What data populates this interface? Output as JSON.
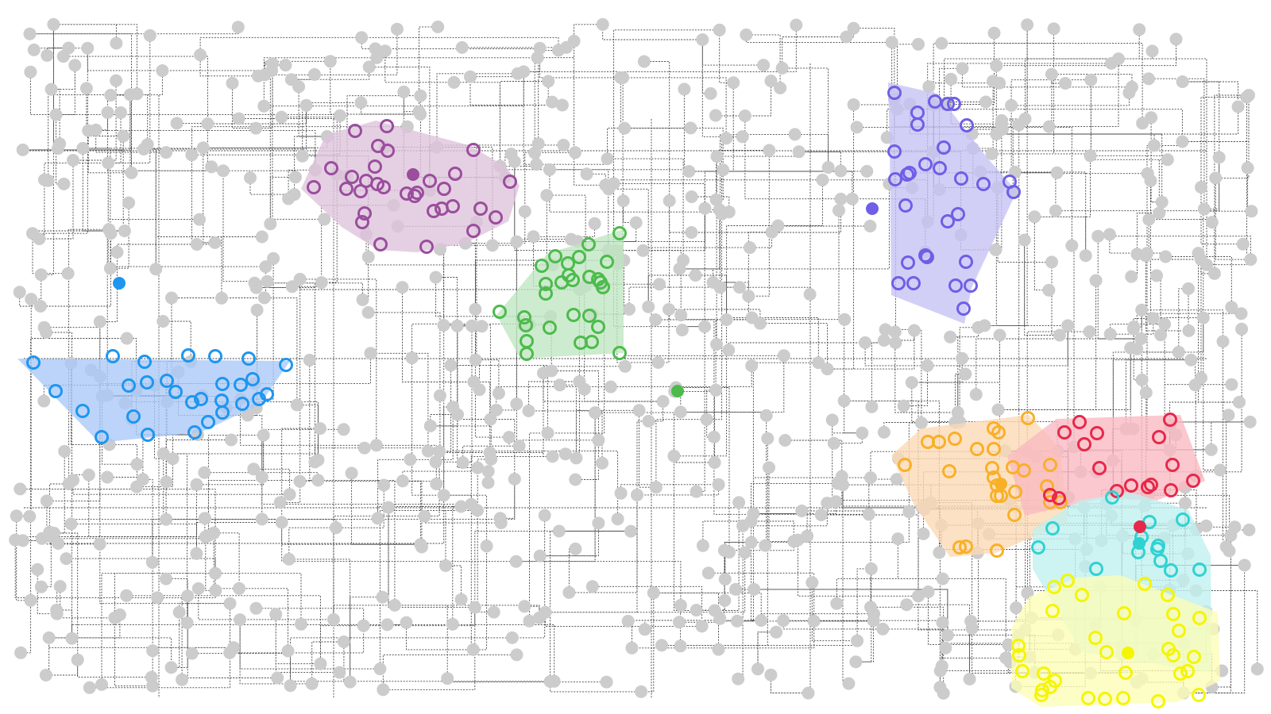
{
  "canvas": {
    "background": "#ffffff"
  },
  "style": {
    "node_color": "#cccccc",
    "edge_color": "#444444"
  },
  "clusters": [
    {
      "name": "blue",
      "color": "#1e96f0",
      "hull_color": "#a9c8f8",
      "center": [
        150,
        357
      ],
      "hull": [
        [
          22,
          452
        ],
        [
          365,
          455
        ],
        [
          327,
          510
        ],
        [
          252,
          545
        ],
        [
          125,
          558
        ]
      ],
      "members": [
        [
          42,
          457
        ],
        [
          142,
          449
        ],
        [
          182,
          456
        ],
        [
          237,
          448
        ],
        [
          271,
          449
        ],
        [
          313,
          452
        ],
        [
          360,
          460
        ],
        [
          70,
          493
        ],
        [
          104,
          518
        ],
        [
          162,
          486
        ],
        [
          185,
          482
        ],
        [
          210,
          480
        ],
        [
          221,
          494
        ],
        [
          242,
          507
        ],
        [
          253,
          503
        ],
        [
          280,
          484
        ],
        [
          303,
          485
        ],
        [
          318,
          478
        ],
        [
          326,
          503
        ],
        [
          336,
          497
        ],
        [
          279,
          505
        ],
        [
          305,
          509
        ],
        [
          280,
          520
        ],
        [
          168,
          525
        ],
        [
          186,
          548
        ],
        [
          128,
          551
        ],
        [
          245,
          545
        ],
        [
          262,
          532
        ]
      ]
    },
    {
      "name": "purple",
      "color": "#9b4d9e",
      "hull_color": "#dcc3da",
      "center": [
        520,
        220
      ],
      "hull": [
        [
          379,
          238
        ],
        [
          410,
          170
        ],
        [
          473,
          152
        ],
        [
          590,
          183
        ],
        [
          637,
          210
        ],
        [
          654,
          234
        ],
        [
          640,
          279
        ],
        [
          587,
          306
        ],
        [
          525,
          318
        ],
        [
          476,
          315
        ],
        [
          430,
          286
        ]
      ],
      "members": [
        [
          487,
          159
        ],
        [
          447,
          165
        ],
        [
          476,
          184
        ],
        [
          488,
          190
        ],
        [
          596,
          189
        ],
        [
          417,
          212
        ],
        [
          443,
          223
        ],
        [
          461,
          228
        ],
        [
          475,
          232
        ],
        [
          472,
          210
        ],
        [
          395,
          236
        ],
        [
          436,
          238
        ],
        [
          454,
          241
        ],
        [
          483,
          236
        ],
        [
          512,
          244
        ],
        [
          522,
          247
        ],
        [
          525,
          243
        ],
        [
          541,
          228
        ],
        [
          559,
          238
        ],
        [
          573,
          219
        ],
        [
          556,
          263
        ],
        [
          570,
          260
        ],
        [
          546,
          266
        ],
        [
          605,
          263
        ],
        [
          624,
          274
        ],
        [
          642,
          229
        ],
        [
          459,
          269
        ],
        [
          456,
          280
        ],
        [
          479,
          308
        ],
        [
          537,
          311
        ],
        [
          596,
          291
        ]
      ]
    },
    {
      "name": "green",
      "color": "#4cbb4c",
      "hull_color": "#bfe6c0",
      "center": [
        853,
        493
      ],
      "hull": [
        [
          625,
          397
        ],
        [
          689,
          320
        ],
        [
          785,
          289
        ],
        [
          785,
          445
        ],
        [
          655,
          452
        ]
      ],
      "members": [
        [
          780,
          294
        ],
        [
          741,
          308
        ],
        [
          729,
          324
        ],
        [
          699,
          323
        ],
        [
          715,
          332
        ],
        [
          682,
          335
        ],
        [
          764,
          330
        ],
        [
          742,
          349
        ],
        [
          721,
          353
        ],
        [
          756,
          356
        ],
        [
          759,
          362
        ],
        [
          707,
          356
        ],
        [
          687,
          358
        ],
        [
          687,
          370
        ],
        [
          716,
          347
        ],
        [
          753,
          352
        ],
        [
          629,
          393
        ],
        [
          660,
          400
        ],
        [
          662,
          410
        ],
        [
          722,
          397
        ],
        [
          742,
          398
        ],
        [
          692,
          413
        ],
        [
          753,
          412
        ],
        [
          663,
          430
        ],
        [
          731,
          432
        ],
        [
          745,
          431
        ],
        [
          663,
          446
        ],
        [
          780,
          445
        ]
      ]
    },
    {
      "name": "indigo",
      "color": "#6e5fe6",
      "hull_color": "#c5c1f5",
      "center": [
        1098,
        263
      ],
      "hull": [
        [
          1118,
          104
        ],
        [
          1180,
          118
        ],
        [
          1242,
          198
        ],
        [
          1280,
          241
        ],
        [
          1223,
          363
        ],
        [
          1214,
          408
        ],
        [
          1122,
          372
        ],
        [
          1120,
          188
        ]
      ],
      "members": [
        [
          1126,
          117
        ],
        [
          1177,
          128
        ],
        [
          1193,
          131
        ],
        [
          1201,
          131
        ],
        [
          1155,
          142
        ],
        [
          1155,
          157
        ],
        [
          1217,
          158
        ],
        [
          1126,
          191
        ],
        [
          1188,
          186
        ],
        [
          1165,
          207
        ],
        [
          1183,
          212
        ],
        [
          1145,
          218
        ],
        [
          1127,
          226
        ],
        [
          1142,
          220
        ],
        [
          1210,
          225
        ],
        [
          1238,
          232
        ],
        [
          1271,
          229
        ],
        [
          1276,
          242
        ],
        [
          1140,
          259
        ],
        [
          1206,
          270
        ],
        [
          1193,
          279
        ],
        [
          1143,
          331
        ],
        [
          1165,
          322
        ],
        [
          1167,
          324
        ],
        [
          1216,
          330
        ],
        [
          1131,
          357
        ],
        [
          1150,
          357
        ],
        [
          1203,
          360
        ],
        [
          1222,
          360
        ],
        [
          1213,
          389
        ]
      ]
    },
    {
      "name": "orange",
      "color": "#f9b027",
      "hull_color": "#fdd9b4",
      "center": [
        1260,
        610
      ],
      "hull": [
        [
          1122,
          574
        ],
        [
          1160,
          540
        ],
        [
          1295,
          523
        ],
        [
          1335,
          566
        ],
        [
          1344,
          658
        ],
        [
          1253,
          697
        ],
        [
          1196,
          702
        ],
        [
          1150,
          635
        ]
      ],
      "members": [
        [
          1294,
          527
        ],
        [
          1251,
          540
        ],
        [
          1257,
          545
        ],
        [
          1168,
          557
        ],
        [
          1182,
          557
        ],
        [
          1202,
          553
        ],
        [
          1230,
          566
        ],
        [
          1251,
          566
        ],
        [
          1139,
          586
        ],
        [
          1195,
          594
        ],
        [
          1249,
          590
        ],
        [
          1275,
          589
        ],
        [
          1289,
          593
        ],
        [
          1322,
          586
        ],
        [
          1251,
          602
        ],
        [
          1255,
          612
        ],
        [
          1278,
          620
        ],
        [
          1318,
          613
        ],
        [
          1260,
          625
        ],
        [
          1255,
          625
        ],
        [
          1335,
          633
        ],
        [
          1322,
          633
        ],
        [
          1277,
          649
        ],
        [
          1208,
          690
        ],
        [
          1216,
          689
        ],
        [
          1255,
          694
        ]
      ]
    },
    {
      "name": "red",
      "color": "#e8284a",
      "hull_color": "#f8b8c0",
      "center": [
        1435,
        664
      ],
      "hull": [
        [
          1268,
          575
        ],
        [
          1330,
          528
        ],
        [
          1486,
          523
        ],
        [
          1517,
          606
        ],
        [
          1456,
          631
        ],
        [
          1388,
          628
        ],
        [
          1290,
          650
        ]
      ],
      "members": [
        [
          1473,
          529
        ],
        [
          1359,
          532
        ],
        [
          1340,
          545
        ],
        [
          1381,
          546
        ],
        [
          1459,
          551
        ],
        [
          1365,
          560
        ],
        [
          1384,
          590
        ],
        [
          1476,
          586
        ],
        [
          1424,
          612
        ],
        [
          1449,
          611
        ],
        [
          1406,
          619
        ],
        [
          1445,
          614
        ],
        [
          1474,
          618
        ],
        [
          1502,
          606
        ],
        [
          1322,
          624
        ],
        [
          1333,
          628
        ]
      ]
    },
    {
      "name": "cyan",
      "color": "#2fd2d2",
      "hull_color": "#bff0ee",
      "center": [
        1434,
        685
      ],
      "hull": [
        [
          1300,
          667
        ],
        [
          1359,
          631
        ],
        [
          1422,
          620
        ],
        [
          1496,
          643
        ],
        [
          1524,
          700
        ],
        [
          1525,
          848
        ],
        [
          1362,
          822
        ],
        [
          1300,
          717
        ]
      ],
      "members": [
        [
          1400,
          627
        ],
        [
          1447,
          658
        ],
        [
          1489,
          655
        ],
        [
          1325,
          666
        ],
        [
          1437,
          677
        ],
        [
          1457,
          692
        ],
        [
          1307,
          690
        ],
        [
          1433,
          696
        ],
        [
          1458,
          688
        ],
        [
          1461,
          707
        ],
        [
          1474,
          719
        ],
        [
          1510,
          718
        ],
        [
          1380,
          717
        ]
      ]
    },
    {
      "name": "yellow",
      "color": "#f5f500",
      "hull_color": "#fdfdb6",
      "center": [
        1420,
        823
      ],
      "hull": [
        [
          1296,
          752
        ],
        [
          1356,
          728
        ],
        [
          1410,
          725
        ],
        [
          1533,
          772
        ],
        [
          1536,
          858
        ],
        [
          1482,
          885
        ],
        [
          1310,
          891
        ],
        [
          1273,
          867
        ],
        [
          1274,
          790
        ]
      ],
      "members": [
        [
          1344,
          732
        ],
        [
          1327,
          740
        ],
        [
          1362,
          750
        ],
        [
          1441,
          736
        ],
        [
          1470,
          750
        ],
        [
          1325,
          770
        ],
        [
          1415,
          773
        ],
        [
          1477,
          774
        ],
        [
          1510,
          779
        ],
        [
          1379,
          804
        ],
        [
          1484,
          795
        ],
        [
          1282,
          814
        ],
        [
          1283,
          826
        ],
        [
          1393,
          822
        ],
        [
          1471,
          818
        ],
        [
          1477,
          826
        ],
        [
          1503,
          828
        ],
        [
          1287,
          846
        ],
        [
          1314,
          849
        ],
        [
          1328,
          858
        ],
        [
          1417,
          848
        ],
        [
          1486,
          849
        ],
        [
          1495,
          846
        ],
        [
          1322,
          866
        ],
        [
          1312,
          870
        ],
        [
          1311,
          876
        ],
        [
          1370,
          880
        ],
        [
          1391,
          881
        ],
        [
          1414,
          880
        ],
        [
          1458,
          884
        ],
        [
          1509,
          876
        ]
      ]
    }
  ]
}
